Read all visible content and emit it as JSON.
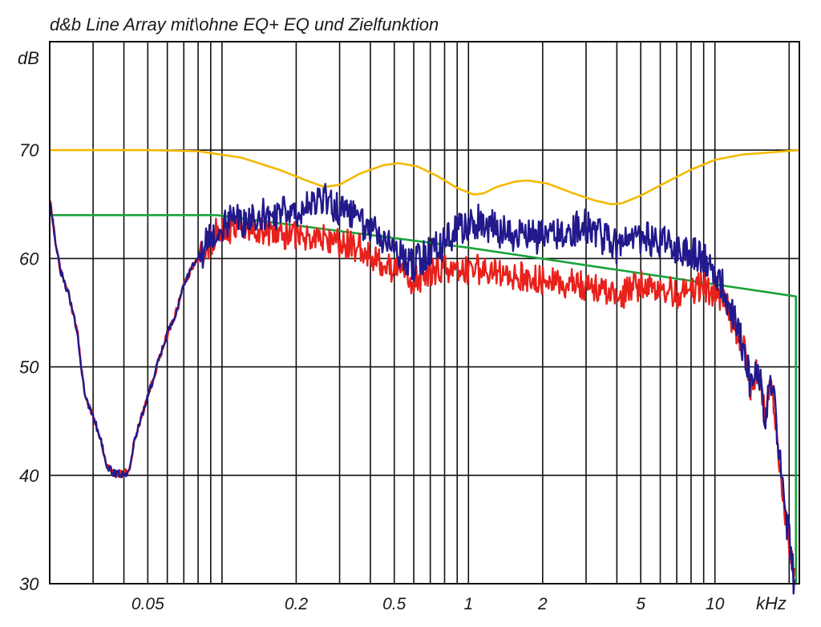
{
  "chart_data": {
    "type": "line",
    "title": "d&b Line Array mit\\ohne EQ+ EQ und Zielfunktion",
    "ylabel": "dB",
    "xlabel": "kHz",
    "x_scale": "log",
    "xlim": [
      0.02,
      22
    ],
    "ylim": [
      30,
      80
    ],
    "grid": true,
    "y_ticks": [
      {
        "value": 30,
        "label": "30"
      },
      {
        "value": 40,
        "label": "40"
      },
      {
        "value": 50,
        "label": "50"
      },
      {
        "value": 60,
        "label": "60"
      },
      {
        "value": 70,
        "label": "70"
      }
    ],
    "x_ticks": [
      {
        "value": 0.05,
        "label": "0.05"
      },
      {
        "value": 0.2,
        "label": "0.2"
      },
      {
        "value": 0.5,
        "label": "0.5"
      },
      {
        "value": 1,
        "label": "1"
      },
      {
        "value": 2,
        "label": "2"
      },
      {
        "value": 5,
        "label": "5"
      },
      {
        "value": 10,
        "label": "10"
      }
    ],
    "series": [
      {
        "color": "#f5b800",
        "roughness": 0,
        "points": [
          [
            0.02,
            70
          ],
          [
            0.05,
            70
          ],
          [
            0.08,
            69.9
          ],
          [
            0.12,
            69.3
          ],
          [
            0.17,
            68.2
          ],
          [
            0.22,
            67.2
          ],
          [
            0.26,
            66.6
          ],
          [
            0.3,
            66.8
          ],
          [
            0.36,
            67.8
          ],
          [
            0.45,
            68.6
          ],
          [
            0.52,
            68.8
          ],
          [
            0.62,
            68.5
          ],
          [
            0.75,
            67.6
          ],
          [
            0.9,
            66.5
          ],
          [
            1.05,
            65.9
          ],
          [
            1.15,
            66
          ],
          [
            1.3,
            66.6
          ],
          [
            1.55,
            67.1
          ],
          [
            1.75,
            67.2
          ],
          [
            2.1,
            66.9
          ],
          [
            2.6,
            66.1
          ],
          [
            3.2,
            65.4
          ],
          [
            3.8,
            65
          ],
          [
            4.2,
            65.1
          ],
          [
            5,
            65.8
          ],
          [
            6.3,
            67
          ],
          [
            8,
            68.2
          ],
          [
            10,
            69.1
          ],
          [
            13,
            69.6
          ],
          [
            17,
            69.8
          ],
          [
            22,
            70
          ]
        ]
      },
      {
        "color": "#1aa33a",
        "roughness": 0,
        "points": [
          [
            0.02,
            64
          ],
          [
            0.095,
            64
          ],
          [
            1,
            61
          ],
          [
            21.3,
            56.5
          ],
          [
            21.3,
            30
          ],
          [
            21.6,
            30
          ]
        ]
      },
      {
        "color": "#e8211b",
        "roughness": 1.4,
        "points": [
          [
            0.02,
            65.5
          ],
          [
            0.021,
            62
          ],
          [
            0.022,
            59
          ],
          [
            0.024,
            56.5
          ],
          [
            0.026,
            53
          ],
          [
            0.027,
            49.5
          ],
          [
            0.028,
            47
          ],
          [
            0.03,
            45.5
          ],
          [
            0.032,
            43.5
          ],
          [
            0.034,
            41
          ],
          [
            0.036,
            40.2
          ],
          [
            0.04,
            40.1
          ],
          [
            0.042,
            40.5
          ],
          [
            0.044,
            43
          ],
          [
            0.048,
            46
          ],
          [
            0.052,
            48.5
          ],
          [
            0.056,
            51
          ],
          [
            0.06,
            53
          ],
          [
            0.065,
            55
          ],
          [
            0.07,
            57.5
          ],
          [
            0.075,
            59
          ],
          [
            0.085,
            60.5
          ],
          [
            0.095,
            62.5
          ],
          [
            0.12,
            62.8
          ],
          [
            0.15,
            62.5
          ],
          [
            0.2,
            62
          ],
          [
            0.26,
            62
          ],
          [
            0.3,
            61.5
          ],
          [
            0.36,
            61
          ],
          [
            0.45,
            59.5
          ],
          [
            0.6,
            58
          ],
          [
            0.75,
            59
          ],
          [
            0.9,
            59
          ],
          [
            1.1,
            59
          ],
          [
            1.5,
            58.5
          ],
          [
            2,
            58
          ],
          [
            3,
            57.5
          ],
          [
            4,
            56.5
          ],
          [
            5,
            57.5
          ],
          [
            7,
            56.8
          ],
          [
            9,
            57.5
          ],
          [
            11,
            56
          ],
          [
            13,
            52
          ],
          [
            14,
            48
          ],
          [
            15,
            50
          ],
          [
            16,
            45
          ],
          [
            17,
            49
          ],
          [
            18,
            43
          ],
          [
            19,
            38
          ],
          [
            20,
            34
          ],
          [
            21,
            30.5
          ]
        ]
      },
      {
        "color": "#22198c",
        "roughness": 1.6,
        "points": [
          [
            0.02,
            65.5
          ],
          [
            0.021,
            62
          ],
          [
            0.022,
            59
          ],
          [
            0.024,
            56.5
          ],
          [
            0.026,
            53
          ],
          [
            0.027,
            49.5
          ],
          [
            0.028,
            47
          ],
          [
            0.03,
            45.5
          ],
          [
            0.032,
            43.5
          ],
          [
            0.034,
            41
          ],
          [
            0.036,
            40.2
          ],
          [
            0.04,
            40.1
          ],
          [
            0.042,
            40.5
          ],
          [
            0.044,
            43
          ],
          [
            0.048,
            46
          ],
          [
            0.052,
            48.5
          ],
          [
            0.056,
            51
          ],
          [
            0.06,
            53
          ],
          [
            0.065,
            55
          ],
          [
            0.07,
            57.5
          ],
          [
            0.075,
            59
          ],
          [
            0.085,
            61
          ],
          [
            0.095,
            63
          ],
          [
            0.12,
            63.5
          ],
          [
            0.15,
            64
          ],
          [
            0.2,
            64.5
          ],
          [
            0.26,
            65.5
          ],
          [
            0.3,
            64.5
          ],
          [
            0.36,
            63.5
          ],
          [
            0.45,
            62
          ],
          [
            0.6,
            59.5
          ],
          [
            0.75,
            61
          ],
          [
            0.9,
            62.5
          ],
          [
            1.1,
            63.5
          ],
          [
            1.5,
            62
          ],
          [
            2,
            62
          ],
          [
            3,
            63
          ],
          [
            4,
            61
          ],
          [
            5,
            62
          ],
          [
            7,
            61
          ],
          [
            9,
            60
          ],
          [
            11,
            57
          ],
          [
            13,
            52
          ],
          [
            14,
            48
          ],
          [
            15,
            50
          ],
          [
            16,
            45
          ],
          [
            17,
            49
          ],
          [
            18,
            43
          ],
          [
            19,
            38
          ],
          [
            20,
            34
          ],
          [
            21,
            30
          ]
        ]
      }
    ]
  }
}
